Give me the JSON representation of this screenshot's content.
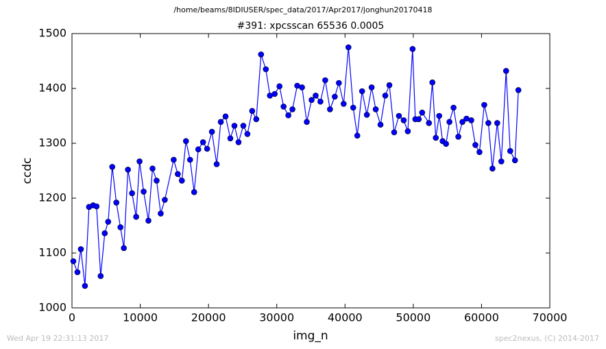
{
  "chart_data": {
    "type": "line",
    "suptitle": "/home/beams/8IDIUSER/spec_data/2017/Apr2017/jonghun20170418",
    "title": "#391: xpcsscan 65536 0.0005",
    "xlabel": "img_n",
    "ylabel": "ccdc",
    "footer_left": "Wed Apr 19 22:31:13 2017",
    "footer_right": "spec2nexus, (C) 2014-2017",
    "color": "#0000ff",
    "x": [
      200,
      800,
      1300,
      1900,
      2500,
      3100,
      3600,
      4200,
      4800,
      5300,
      5900,
      6500,
      7100,
      7600,
      8200,
      8800,
      9400,
      9900,
      10500,
      11200,
      11800,
      12400,
      13000,
      13600,
      14900,
      15500,
      16100,
      16700,
      17300,
      17900,
      18500,
      19200,
      19800,
      20500,
      21200,
      21800,
      22500,
      23200,
      23800,
      24400,
      25100,
      25700,
      26400,
      27000,
      27700,
      28400,
      29000,
      29700,
      30400,
      31000,
      31700,
      32300,
      33000,
      33700,
      34400,
      35100,
      35700,
      36400,
      37100,
      37800,
      38500,
      39100,
      39800,
      40500,
      41200,
      41800,
      42500,
      43200,
      43900,
      44500,
      45200,
      45900,
      46500,
      47200,
      47900,
      48600,
      49200,
      49900,
      50300,
      50800,
      51300,
      52300,
      52800,
      53300,
      53800,
      54300,
      54800,
      55300,
      55900,
      56600,
      57200,
      57800,
      58500,
      59100,
      59700,
      60400,
      61000,
      61600,
      62300,
      62900,
      63600,
      64200,
      64900,
      65400
    ],
    "values": [
      1085,
      1065,
      1107,
      1040,
      1184,
      1187,
      1185,
      1058,
      1136,
      1157,
      1257,
      1192,
      1147,
      1109,
      1252,
      1209,
      1166,
      1267,
      1212,
      1159,
      1254,
      1232,
      1172,
      1197,
      1270,
      1244,
      1232,
      1304,
      1270,
      1211,
      1289,
      1302,
      1290,
      1321,
      1262,
      1339,
      1349,
      1309,
      1332,
      1302,
      1332,
      1317,
      1359,
      1344,
      1462,
      1435,
      1387,
      1390,
      1404,
      1367,
      1351,
      1362,
      1405,
      1402,
      1339,
      1379,
      1387,
      1376,
      1415,
      1362,
      1385,
      1410,
      1372,
      1475,
      1365,
      1314,
      1395,
      1352,
      1402,
      1362,
      1334,
      1387,
      1406,
      1320,
      1350,
      1342,
      1322,
      1472,
      1344,
      1344,
      1356,
      1337,
      1411,
      1310,
      1350,
      1304,
      1299,
      1339,
      1365,
      1312,
      1339,
      1345,
      1342,
      1297,
      1284,
      1370,
      1337,
      1254,
      1337,
      1267,
      1432,
      1286,
      1269,
      1397
    ],
    "xlim": [
      0,
      70000
    ],
    "xticks": [
      0,
      10000,
      20000,
      30000,
      40000,
      50000,
      60000,
      70000
    ],
    "ylim": [
      1000,
      1500
    ],
    "yticks": [
      1000,
      1100,
      1200,
      1300,
      1400,
      1500
    ]
  }
}
